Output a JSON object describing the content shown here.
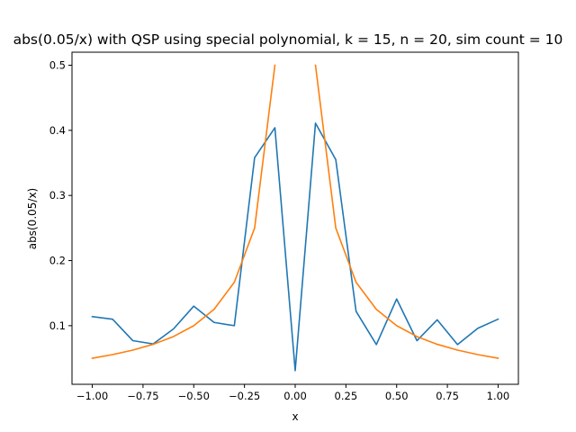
{
  "chart_data": {
    "type": "line",
    "title": "abs(0.05/x) with QSP using special polynomial, k = 15, n = 20, sim count = 10",
    "xlabel": "x",
    "ylabel": "abs(0.05/x)",
    "xlim": [
      -1.1,
      1.1
    ],
    "ylim": [
      0.01,
      0.52
    ],
    "xticks": [
      -1.0,
      -0.75,
      -0.5,
      -0.25,
      0.0,
      0.25,
      0.5,
      0.75,
      1.0
    ],
    "xtick_labels": [
      "−1.00",
      "−0.75",
      "−0.50",
      "−0.25",
      "0.00",
      "0.25",
      "0.50",
      "0.75",
      "1.00"
    ],
    "yticks": [
      0.1,
      0.2,
      0.3,
      0.4,
      0.5
    ],
    "ytick_labels": [
      "0.1",
      "0.2",
      "0.3",
      "0.4",
      "0.5"
    ],
    "grid": false,
    "series": [
      {
        "color": "#1f77b4",
        "x": [
          -1.0,
          -0.9,
          -0.8,
          -0.7,
          -0.6,
          -0.5,
          -0.4,
          -0.3,
          -0.2,
          -0.1,
          0.0,
          0.1,
          0.2,
          0.3,
          0.4,
          0.5,
          0.6,
          0.7,
          0.8,
          0.9,
          1.0
        ],
        "y": [
          0.114,
          0.11,
          0.077,
          0.072,
          0.095,
          0.13,
          0.105,
          0.1,
          0.358,
          0.404,
          0.031,
          0.411,
          0.355,
          0.122,
          0.071,
          0.141,
          0.077,
          0.109,
          0.071,
          0.096,
          0.11
        ]
      },
      {
        "color": "#ff7f0e",
        "segments": [
          {
            "x": [
              -1.0,
              -0.9,
              -0.8,
              -0.7,
              -0.6,
              -0.5,
              -0.4,
              -0.3,
              -0.2,
              -0.1
            ],
            "y": [
              0.05,
              0.0556,
              0.0625,
              0.0714,
              0.0833,
              0.1,
              0.125,
              0.1667,
              0.25,
              0.5
            ]
          },
          {
            "x": [
              0.1,
              0.2,
              0.3,
              0.4,
              0.5,
              0.6,
              0.7,
              0.8,
              0.9,
              1.0
            ],
            "y": [
              0.5,
              0.25,
              0.1667,
              0.125,
              0.1,
              0.0833,
              0.0714,
              0.0625,
              0.0556,
              0.05
            ]
          }
        ]
      }
    ]
  }
}
